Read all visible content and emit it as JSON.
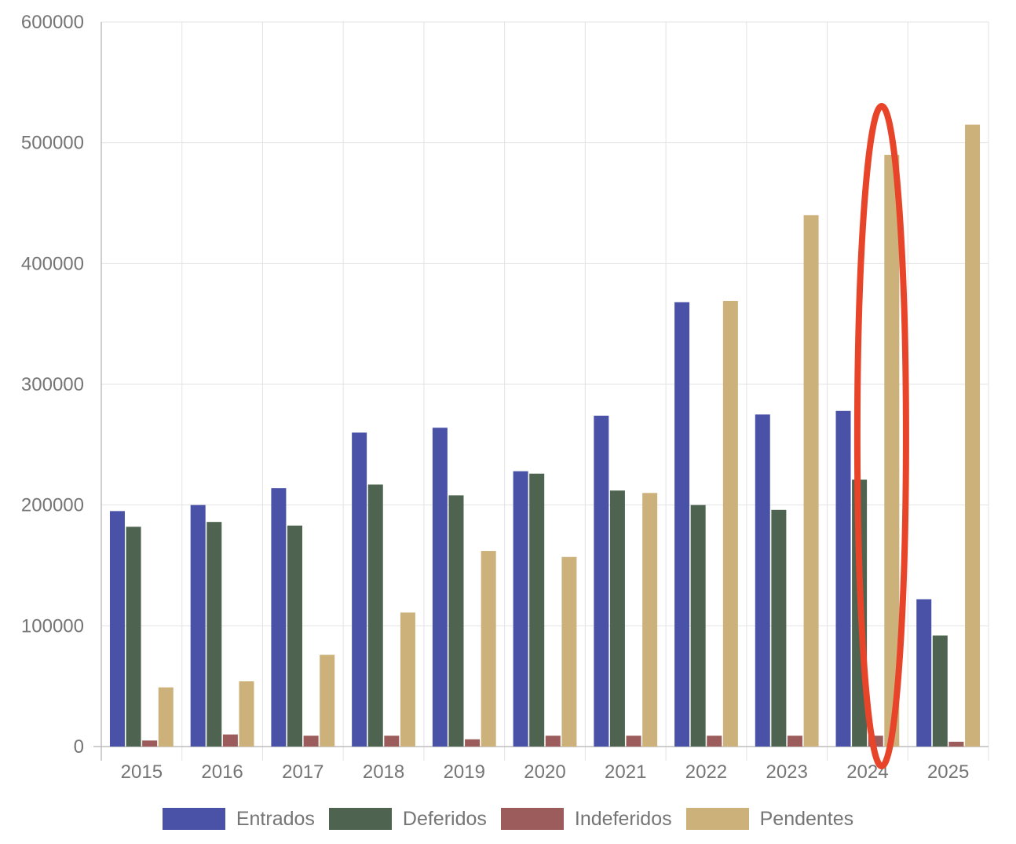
{
  "chart_data": {
    "type": "bar",
    "title": "",
    "xlabel": "",
    "ylabel": "",
    "categories": [
      "2015",
      "2016",
      "2017",
      "2018",
      "2019",
      "2020",
      "2021",
      "2022",
      "2023",
      "2024",
      "2025"
    ],
    "ylim": [
      0,
      600000
    ],
    "yticks": [
      "0",
      "100000",
      "200000",
      "300000",
      "400000",
      "500000",
      "600000"
    ],
    "grid": true,
    "legend_position": "bottom",
    "series": [
      {
        "name": "Entrados",
        "color": "#4a52a8",
        "values": [
          195000,
          200000,
          214000,
          260000,
          264000,
          228000,
          274000,
          368000,
          275000,
          278000,
          122000
        ]
      },
      {
        "name": "Deferidos",
        "color": "#4e6450",
        "values": [
          182000,
          186000,
          183000,
          217000,
          208000,
          226000,
          212000,
          200000,
          196000,
          221000,
          92000
        ]
      },
      {
        "name": "Indeferidos",
        "color": "#9c5c5c",
        "values": [
          5000,
          10000,
          9000,
          9000,
          6000,
          9000,
          9000,
          9000,
          9000,
          9000,
          4000
        ]
      },
      {
        "name": "Pendentes",
        "color": "#ccb27a",
        "values": [
          49000,
          54000,
          76000,
          111000,
          162000,
          157000,
          210000,
          369000,
          440000,
          490000,
          515000
        ]
      }
    ],
    "annotation": {
      "type": "ellipse",
      "category": "2024",
      "color": "#e8442a"
    }
  }
}
